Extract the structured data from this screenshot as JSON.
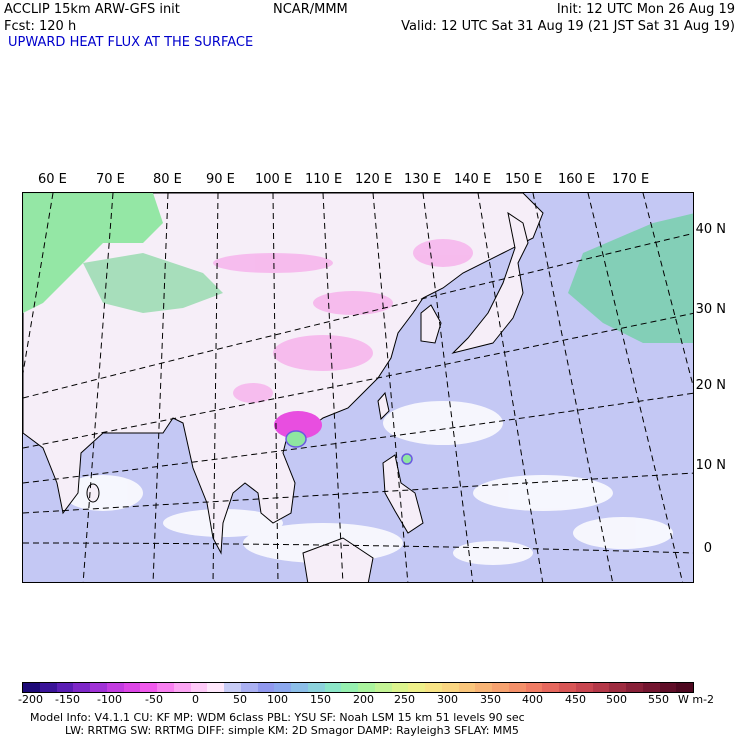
{
  "header": {
    "model": "ACCLIP 15km ARW-GFS init",
    "center": "NCAR/MMM",
    "init": "Init: 12 UTC Mon 26 Aug 19",
    "fcst": "Fcst:  120 h",
    "valid": "Valid: 12 UTC Sat 31 Aug 19 (21 JST Sat 31 Aug 19)",
    "field_title": "UPWARD HEAT FLUX AT THE SURFACE"
  },
  "map": {
    "lon_labels": [
      "60 E",
      "70 E",
      "80 E",
      "90 E",
      "100 E",
      "110 E",
      "120 E",
      "130 E",
      "140 E",
      "150 E",
      "160 E",
      "170 E"
    ],
    "lat_labels": [
      "40 N",
      "30 N",
      "20 N",
      "10 N",
      "0"
    ]
  },
  "colorbar": {
    "tick_labels": [
      "-200",
      "-150",
      "-100",
      "-50",
      "0",
      "50",
      "100",
      "150",
      "200",
      "250",
      "300",
      "350",
      "400",
      "450",
      "500",
      "550"
    ],
    "units": "W m-2",
    "colors": [
      "#1e0a78",
      "#3a1498",
      "#5a1eb4",
      "#7e28c8",
      "#a032d6",
      "#c23ce0",
      "#dc46e6",
      "#f05aec",
      "#f880f0",
      "#fca6f4",
      "#fecaf8",
      "#ffe8fc",
      "#c8ccf6",
      "#aab0f2",
      "#9098ee",
      "#8ca8ee",
      "#8cbee8",
      "#8cd2dc",
      "#8ce6c8",
      "#96f0b0",
      "#aaf49e",
      "#c4f496",
      "#dcf48e",
      "#eef08a",
      "#f8e486",
      "#fad682",
      "#fac67c",
      "#f8b476",
      "#f6a270",
      "#f4906a",
      "#f07c64",
      "#e6685e",
      "#d85656",
      "#c84650",
      "#b43848",
      "#9e2c40",
      "#882038",
      "#741630",
      "#600e28",
      "#4e0820"
    ]
  },
  "footer": {
    "line1": "Model Info: V4.1.1     CU: KF        MP: WDM 6class  PBL: YSU        SF: Noah LSM    15 km    51 levels    90 sec",
    "line2": "LW: RRTMG    SW: RRTMG   DIFF: simple KM: 2D Smagor DAMP: Rayleigh3  SFLAY: MM5"
  },
  "colors": {
    "title_blue": "#0000cc",
    "ocean_fill": "#c4c8f4",
    "land_fill": "#f4eef8",
    "high_flux": "#8ee6a0"
  }
}
